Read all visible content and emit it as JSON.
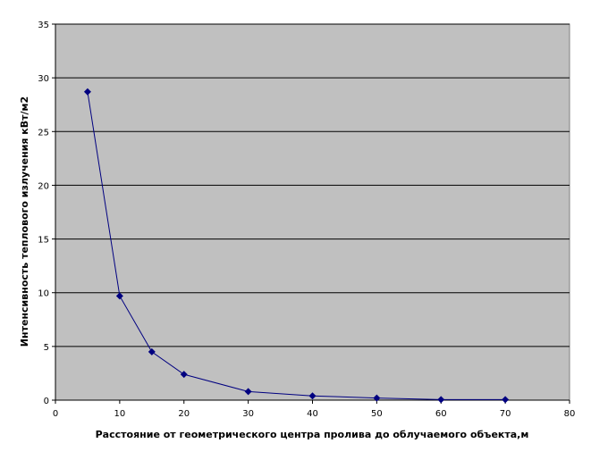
{
  "chart_data": {
    "type": "line",
    "title": "",
    "xlabel": "Расстояние от геометрического центра пролива до облучаемого объекта,м",
    "ylabel": "Интенсивность теплового излучения кВт/м2",
    "xlim": [
      0,
      80
    ],
    "ylim": [
      0,
      35
    ],
    "xticks": [
      0,
      10,
      20,
      30,
      40,
      50,
      60,
      70,
      80
    ],
    "yticks": [
      0,
      5,
      10,
      15,
      20,
      25,
      30,
      35
    ],
    "grid": "horizontal",
    "legend": "none",
    "plot_background": "#c0c0c0",
    "series": [
      {
        "color": "#000080",
        "marker": "diamond",
        "x": [
          5,
          10,
          15,
          20,
          30,
          40,
          50,
          60,
          70
        ],
        "y": [
          28.7,
          9.7,
          4.5,
          2.4,
          0.8,
          0.4,
          0.2,
          0.05,
          0.05
        ]
      }
    ]
  }
}
